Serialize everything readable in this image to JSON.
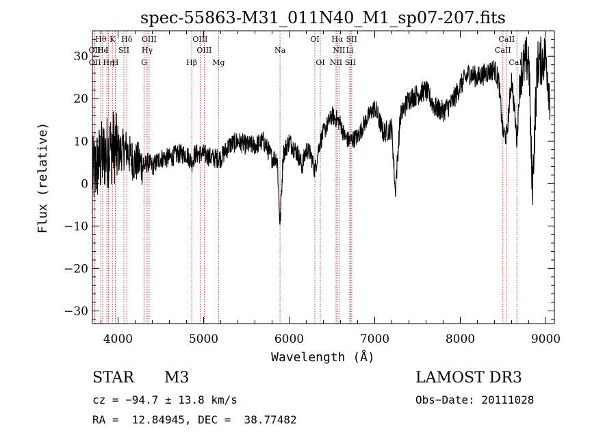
{
  "chart_data": {
    "type": "line",
    "title": "spec-55863-M31_011N40_M1_sp07-207.fits",
    "xlabel": "Wavelength (Å)",
    "ylabel": "Flux (relative)",
    "xlim": [
      3700,
      9100
    ],
    "ylim": [
      -33,
      36
    ],
    "x_ticks": [
      4000,
      5000,
      6000,
      7000,
      8000,
      9000
    ],
    "x_tick_labels": [
      "4000",
      "5000",
      "6000",
      "7000",
      "8000",
      "9000"
    ],
    "y_ticks": [
      -30,
      -20,
      -10,
      0,
      10,
      20,
      30
    ],
    "y_tick_labels": [
      "−30",
      "−20",
      "−10",
      "0",
      "10",
      "20",
      "30"
    ],
    "grid": false,
    "line_color": "#000000",
    "marker_color": "#b22222",
    "series": [
      {
        "name": "flux",
        "x": [
          3700,
          3750,
          3800,
          3850,
          3900,
          3950,
          4000,
          4050,
          4100,
          4150,
          4200,
          4250,
          4300,
          4350,
          4400,
          4450,
          4500,
          4600,
          4700,
          4800,
          4862,
          4900,
          5000,
          5100,
          5200,
          5300,
          5400,
          5500,
          5600,
          5700,
          5800,
          5860,
          5893,
          5930,
          6000,
          6100,
          6150,
          6200,
          6250,
          6300,
          6350,
          6400,
          6450,
          6500,
          6563,
          6600,
          6650,
          6700,
          6800,
          6900,
          7000,
          7100,
          7200,
          7240,
          7300,
          7400,
          7500,
          7600,
          7700,
          7800,
          7900,
          8000,
          8100,
          8200,
          8300,
          8400,
          8450,
          8498,
          8542,
          8600,
          8662,
          8700,
          8800,
          8840,
          8900,
          9000,
          9050
        ],
        "y": [
          2,
          4,
          6,
          7,
          8,
          9,
          7,
          8,
          8,
          6,
          5,
          5,
          4,
          5,
          4,
          5,
          6,
          6,
          7,
          7,
          5,
          7,
          7,
          6,
          6,
          9,
          10,
          9,
          9,
          10,
          6,
          6,
          -10,
          7,
          10,
          7,
          4,
          8,
          7,
          3,
          9,
          12,
          14,
          16,
          15,
          14,
          11,
          10,
          11,
          15,
          18,
          12,
          13,
          -2,
          16,
          20,
          21,
          22,
          18,
          17,
          19,
          23,
          26,
          25,
          26,
          27,
          24,
          12,
          11,
          25,
          10,
          26,
          30,
          -2,
          28,
          30,
          20
        ]
      }
    ],
    "line_markers": [
      {
        "label": "Hθ",
        "x": 3798,
        "row": 1
      },
      {
        "label": "K",
        "x": 3934,
        "row": 1
      },
      {
        "label": "Hδ",
        "x": 4102,
        "row": 1
      },
      {
        "label": "OIII",
        "x": 4363,
        "row": 1
      },
      {
        "label": "OIII",
        "x": 4959,
        "row": 1
      },
      {
        "label": "OI",
        "x": 6300,
        "row": 1
      },
      {
        "label": "Hα",
        "x": 6563,
        "row": 1
      },
      {
        "label": "SII",
        "x": 6731,
        "row": 1
      },
      {
        "label": "CaII",
        "x": 8542,
        "row": 1
      },
      {
        "label": "OII",
        "x": 3727,
        "row": 2
      },
      {
        "label": "He",
        "x": 3820,
        "row": 2
      },
      {
        "label": "I",
        "x": 3869,
        "row": 2
      },
      {
        "label": "SII",
        "x": 4068,
        "row": 2
      },
      {
        "label": "Hγ",
        "x": 4340,
        "row": 2
      },
      {
        "label": "OIII",
        "x": 5007,
        "row": 2
      },
      {
        "label": "Na",
        "x": 5893,
        "row": 2
      },
      {
        "label": "NII",
        "x": 6583,
        "row": 2
      },
      {
        "label": "Li",
        "x": 6708,
        "row": 2
      },
      {
        "label": "CaII",
        "x": 8498,
        "row": 2
      },
      {
        "label": "OII",
        "x": 3729,
        "row": 3
      },
      {
        "label": "Hη",
        "x": 3889,
        "row": 3
      },
      {
        "label": "H",
        "x": 3968,
        "row": 3
      },
      {
        "label": "G",
        "x": 4304,
        "row": 3
      },
      {
        "label": "Hβ",
        "x": 4861,
        "row": 3
      },
      {
        "label": "Mg",
        "x": 5175,
        "row": 3
      },
      {
        "label": "OI",
        "x": 6364,
        "row": 3
      },
      {
        "label": "NII",
        "x": 6548,
        "row": 3
      },
      {
        "label": "SII",
        "x": 6716,
        "row": 3
      },
      {
        "label": "CaII",
        "x": 8662,
        "row": 3
      }
    ]
  },
  "info": {
    "object_class": "STAR",
    "subclass": "M3",
    "survey": "LAMOST DR3",
    "cz": "cz = −94.7 ± 13.8 km/s",
    "obs_date": "Obs−Date: 20111028",
    "coords": "RA =  12.84945, DEC =  38.77482"
  }
}
